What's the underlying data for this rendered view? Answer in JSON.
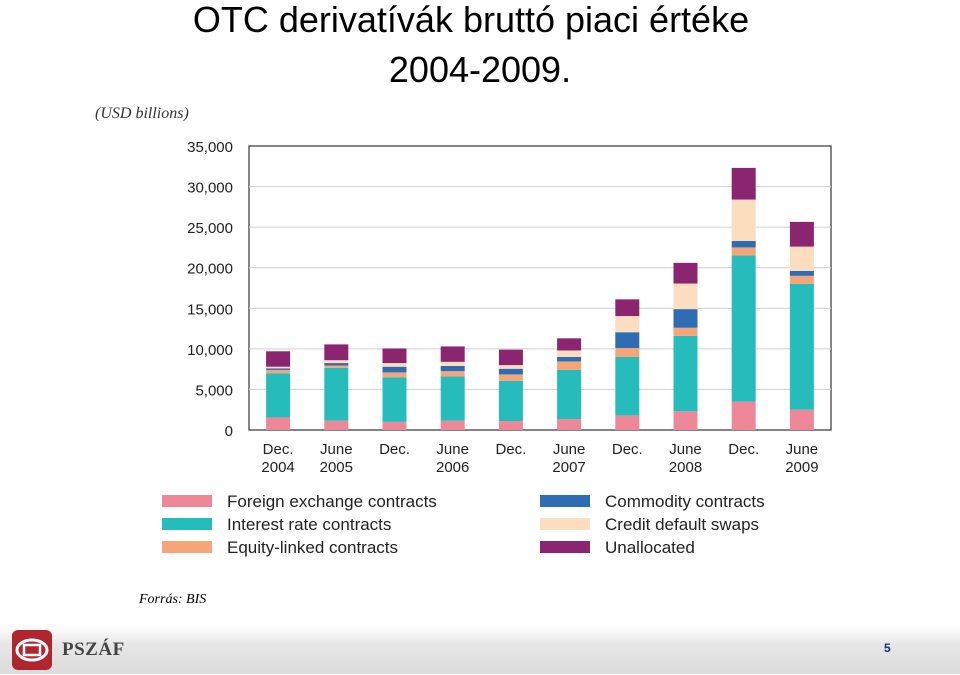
{
  "slide": {
    "title_line1": "OTC derivatívák bruttó piaci értéke",
    "title_line2": "2004-2009.",
    "source": "Forrás: BIS",
    "logo_text": "PSZÁF",
    "page_number": "5"
  },
  "chart_data": {
    "type": "bar",
    "stacked": true,
    "title": "",
    "ylabel": "(USD billions)",
    "xlabel": "",
    "ylim": [
      0,
      35000
    ],
    "yticks": [
      0,
      5000,
      10000,
      15000,
      20000,
      25000,
      30000,
      35000
    ],
    "ytick_labels": [
      "0",
      "5,000",
      "10,000",
      "15,000",
      "20,000",
      "25,000",
      "30,000",
      "35,000"
    ],
    "categories": [
      [
        "Dec.",
        "2004"
      ],
      [
        "June",
        "2005"
      ],
      [
        "Dec.",
        ""
      ],
      [
        "June",
        "2006"
      ],
      [
        "Dec.",
        ""
      ],
      [
        "June",
        "2007"
      ],
      [
        "Dec.",
        ""
      ],
      [
        "June",
        "2008"
      ],
      [
        "Dec.",
        ""
      ],
      [
        "June",
        "2009"
      ]
    ],
    "grid": true,
    "legend_position": "bottom",
    "series": [
      {
        "name": "Foreign exchange contracts",
        "color": "#ee8899",
        "values": [
          1550,
          1150,
          1000,
          1150,
          1100,
          1350,
          1800,
          2300,
          3500,
          2500
        ]
      },
      {
        "name": "Interest rate contracts",
        "color": "#26bcbc",
        "values": [
          5450,
          6500,
          5500,
          5450,
          4950,
          6050,
          7200,
          9300,
          18000,
          15500
        ]
      },
      {
        "name": "Equity-linked contracts",
        "color": "#f4a678",
        "values": [
          400,
          300,
          600,
          650,
          800,
          1050,
          1100,
          1000,
          1000,
          1000
        ]
      },
      {
        "name": "Commodity contracts",
        "color": "#2e6db4",
        "values": [
          200,
          300,
          700,
          650,
          700,
          550,
          1950,
          2300,
          800,
          600
        ]
      },
      {
        "name": "Credit default swaps",
        "color": "#fcddc0",
        "values": [
          200,
          350,
          450,
          500,
          450,
          800,
          2000,
          3150,
          5100,
          3000
        ]
      },
      {
        "name": "Unallocated",
        "color": "#8b2570",
        "values": [
          1900,
          1950,
          1800,
          1900,
          1900,
          1500,
          2050,
          2550,
          3900,
          3050
        ]
      }
    ]
  }
}
